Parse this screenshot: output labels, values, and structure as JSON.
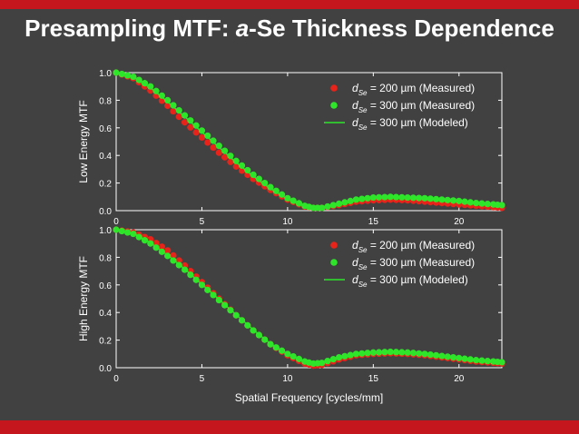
{
  "slide": {
    "title_italic": "a",
    "title_prefix": "Presampling MTF: ",
    "title_suffix": "-Se Thickness Dependence",
    "colors": {
      "background": "#414141",
      "accent_bar": "#c4161c",
      "text": "#ffffff"
    }
  },
  "chart_data": [
    {
      "type": "scatter",
      "ylabel": "Low Energy MTF",
      "xlabel": "",
      "xlim": [
        0,
        22.5
      ],
      "ylim": [
        0,
        1.0
      ],
      "xticks": [
        "0",
        "5",
        "10",
        "15",
        "20"
      ],
      "yticks": [
        "0.0",
        "0.2",
        "0.4",
        "0.6",
        "0.8",
        "1.0"
      ],
      "legend_position": "top-right",
      "series": [
        {
          "name_italic": "d",
          "name_sub": "Se",
          "name_rest": " = 200 µm (Measured)",
          "style": "markers",
          "color": "#e8231a",
          "x": [
            0,
            1,
            2,
            3,
            4,
            5,
            6,
            7,
            8,
            9,
            10,
            11,
            11.5,
            12,
            13,
            14,
            15,
            16,
            17,
            18,
            19,
            20,
            21,
            22,
            22.5
          ],
          "y": [
            1.0,
            0.96,
            0.87,
            0.76,
            0.64,
            0.53,
            0.42,
            0.32,
            0.23,
            0.15,
            0.08,
            0.03,
            0.02,
            0.02,
            0.04,
            0.065,
            0.075,
            0.08,
            0.075,
            0.065,
            0.055,
            0.045,
            0.035,
            0.025,
            0.02
          ]
        },
        {
          "name_italic": "d",
          "name_sub": "Se",
          "name_rest": " = 300 µm (Measured)",
          "style": "markers",
          "color": "#2ee52a",
          "x": [
            0,
            1,
            2,
            3,
            4,
            5,
            6,
            7,
            8,
            9,
            10,
            11,
            11.5,
            12,
            13,
            14,
            15,
            16,
            17,
            18,
            19,
            20,
            21,
            22,
            22.5
          ],
          "y": [
            1.0,
            0.97,
            0.9,
            0.8,
            0.69,
            0.58,
            0.47,
            0.36,
            0.26,
            0.17,
            0.09,
            0.035,
            0.02,
            0.02,
            0.05,
            0.08,
            0.095,
            0.1,
            0.095,
            0.09,
            0.08,
            0.07,
            0.055,
            0.045,
            0.04
          ]
        },
        {
          "name_italic": "d",
          "name_sub": "Se",
          "name_rest": " = 300 µm (Modeled)",
          "style": "line",
          "color": "#2ee52a",
          "x": [
            0,
            1,
            2,
            3,
            4,
            5,
            6,
            7,
            8,
            9,
            10,
            11,
            11.5,
            12,
            13,
            14,
            15,
            16,
            17,
            18,
            19,
            20,
            21,
            22,
            22.5
          ],
          "y": [
            1.0,
            0.97,
            0.89,
            0.79,
            0.68,
            0.57,
            0.46,
            0.35,
            0.25,
            0.16,
            0.085,
            0.03,
            0.015,
            0.015,
            0.045,
            0.075,
            0.09,
            0.095,
            0.09,
            0.085,
            0.075,
            0.065,
            0.05,
            0.04,
            0.035
          ]
        }
      ]
    },
    {
      "type": "scatter",
      "ylabel": "High Energy MTF",
      "xlabel": "Spatial Frequency [cycles/mm]",
      "xlim": [
        0,
        22.5
      ],
      "ylim": [
        0,
        1.0
      ],
      "xticks": [
        "0",
        "5",
        "10",
        "15",
        "20"
      ],
      "yticks": [
        "0.0",
        "0.2",
        "0.4",
        "0.6",
        "0.8",
        "1.0"
      ],
      "legend_position": "top-right",
      "series": [
        {
          "name_italic": "d",
          "name_sub": "Se",
          "name_rest": " = 200 µm (Measured)",
          "style": "markers",
          "color": "#e8231a",
          "x": [
            0,
            1,
            2,
            3,
            4,
            5,
            6,
            7,
            8,
            9,
            10,
            11,
            11.5,
            12,
            13,
            14,
            15,
            16,
            17,
            18,
            19,
            20,
            21,
            22,
            22.5
          ],
          "y": [
            1.0,
            0.98,
            0.93,
            0.85,
            0.74,
            0.62,
            0.5,
            0.38,
            0.27,
            0.17,
            0.09,
            0.03,
            0.015,
            0.02,
            0.06,
            0.09,
            0.1,
            0.105,
            0.1,
            0.09,
            0.075,
            0.06,
            0.045,
            0.035,
            0.03
          ]
        },
        {
          "name_italic": "d",
          "name_sub": "Se",
          "name_rest": " = 300 µm (Measured)",
          "style": "markers",
          "color": "#2ee52a",
          "x": [
            0,
            1,
            2,
            3,
            4,
            5,
            6,
            7,
            8,
            9,
            10,
            11,
            11.5,
            12,
            13,
            14,
            15,
            16,
            17,
            18,
            19,
            20,
            21,
            22,
            22.5
          ],
          "y": [
            1.0,
            0.97,
            0.9,
            0.81,
            0.71,
            0.6,
            0.49,
            0.38,
            0.27,
            0.17,
            0.1,
            0.045,
            0.03,
            0.035,
            0.075,
            0.1,
            0.11,
            0.115,
            0.11,
            0.1,
            0.085,
            0.07,
            0.055,
            0.045,
            0.04
          ]
        },
        {
          "name_italic": "d",
          "name_sub": "Se",
          "name_rest": " = 300 µm (Modeled)",
          "style": "line",
          "color": "#2ee52a",
          "x": [
            0,
            1,
            2,
            3,
            4,
            5,
            6,
            7,
            8,
            9,
            10,
            11,
            11.5,
            12,
            13,
            14,
            15,
            16,
            17,
            18,
            19,
            20,
            21,
            22,
            22.5
          ],
          "y": [
            1.0,
            0.975,
            0.905,
            0.815,
            0.715,
            0.605,
            0.495,
            0.385,
            0.275,
            0.175,
            0.1,
            0.04,
            0.025,
            0.03,
            0.07,
            0.095,
            0.105,
            0.11,
            0.105,
            0.095,
            0.08,
            0.065,
            0.05,
            0.04,
            0.035
          ]
        }
      ]
    }
  ]
}
